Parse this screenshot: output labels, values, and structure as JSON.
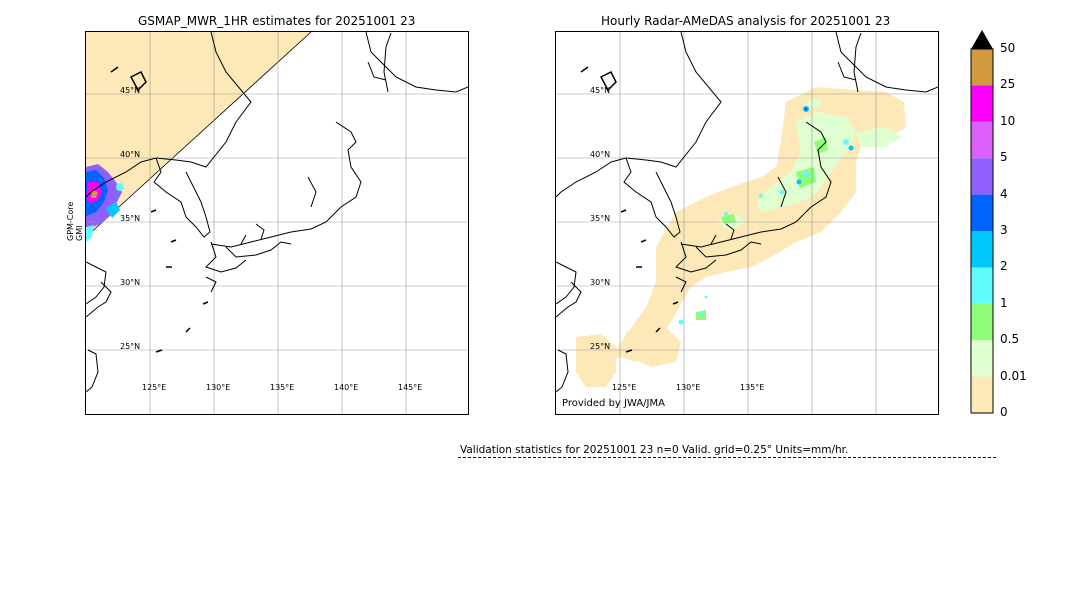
{
  "left_panel": {
    "title": "GSMAP_MWR_1HR estimates for 20251001 23",
    "side_label_1": "GPM-Core",
    "side_label_2": "GMI",
    "lat_labels": [
      "45°N",
      "40°N",
      "35°N",
      "30°N",
      "25°N"
    ],
    "lon_labels": [
      "125°E",
      "130°E",
      "135°E",
      "140°E",
      "145°E"
    ]
  },
  "right_panel": {
    "title": "Hourly Radar-AMeDAS analysis for 20251001 23",
    "credit": "Provided by JWA/JMA",
    "lat_labels": [
      "45°N",
      "40°N",
      "35°N",
      "30°N",
      "25°N"
    ],
    "lon_labels": [
      "125°E",
      "130°E",
      "135°E"
    ]
  },
  "colorbar": {
    "ticks": [
      "50",
      "25",
      "10",
      "5",
      "4",
      "3",
      "2",
      "1",
      "0.5",
      "0.01",
      "0"
    ],
    "colors": [
      "#fde8b8",
      "#e0ffd0",
      "#90fc78",
      "#60fcfc",
      "#00c8fc",
      "#0064fc",
      "#9060fc",
      "#dc60fc",
      "#fc00fc",
      "#d29a40"
    ],
    "extend_color": "#000000"
  },
  "validation": {
    "text": "Validation statistics for 20251001 23  n=0 Valid. grid=0.25° Units=mm/hr."
  }
}
